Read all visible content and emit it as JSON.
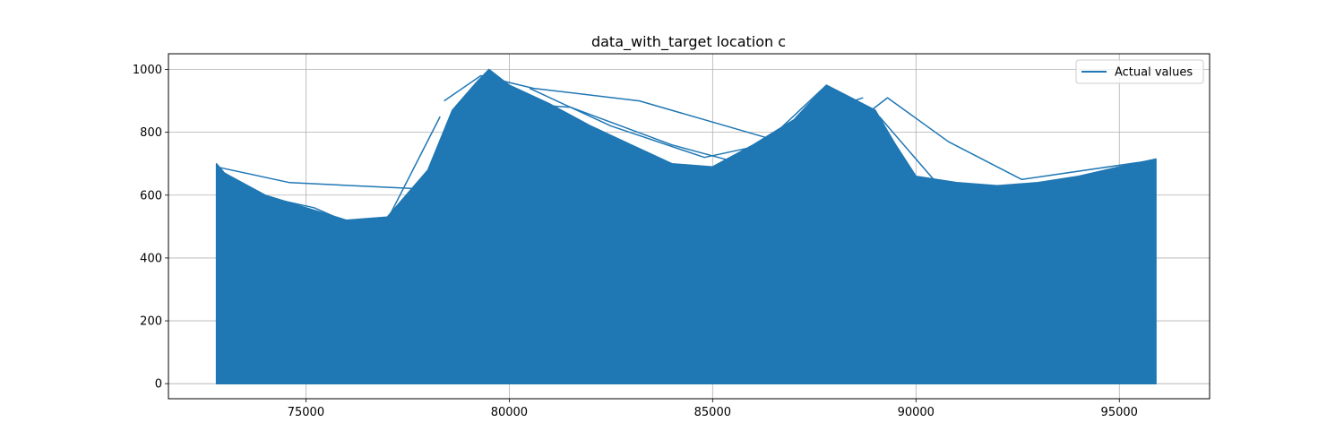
{
  "chart_data": {
    "type": "line",
    "title": "data_with_target location c",
    "xlabel": "",
    "ylabel": "",
    "xlim": [
      71620,
      97220
    ],
    "ylim": [
      -48,
      1050
    ],
    "x_ticks": [
      75000,
      80000,
      85000,
      90000,
      95000
    ],
    "y_ticks": [
      0,
      200,
      400,
      600,
      800,
      1000
    ],
    "grid": true,
    "legend_position": "top-right",
    "series": [
      {
        "name": "Actual values",
        "color": "#1f77b4",
        "envelope": {
          "x": [
            72800,
            73000,
            74000,
            75000,
            76000,
            77000,
            78000,
            78600,
            79200,
            79500,
            80000,
            81000,
            82000,
            83000,
            84000,
            85000,
            86000,
            87000,
            87800,
            88400,
            89000,
            89500,
            90000,
            91000,
            92000,
            93000,
            94000,
            95000,
            95900
          ],
          "y": [
            700,
            670,
            600,
            560,
            520,
            530,
            680,
            870,
            960,
            1000,
            950,
            890,
            820,
            760,
            700,
            690,
            760,
            840,
            950,
            910,
            870,
            760,
            660,
            640,
            630,
            640,
            660,
            690,
            715
          ]
        },
        "overlay_segments": [
          {
            "x": [
              72800,
              74600,
              77800,
              78800
            ],
            "y": [
              690,
              640,
              620,
              900
            ]
          },
          {
            "x": [
              78400,
              79300,
              80600,
              83200,
              86400,
              87800
            ],
            "y": [
              900,
              980,
              940,
              900,
              780,
              950
            ]
          },
          {
            "x": [
              80500,
              82500,
              84800,
              86600,
              88000,
              88700
            ],
            "y": [
              940,
              820,
              720,
              770,
              880,
              910
            ]
          },
          {
            "x": [
              88000,
              88900,
              89300,
              90800,
              92600,
              95800
            ],
            "y": [
              910,
              870,
              910,
              770,
              650,
              710
            ]
          },
          {
            "x": [
              73100,
              75200,
              76800,
              78300
            ],
            "y": [
              620,
              560,
              470,
              850
            ]
          },
          {
            "x": [
              79000,
              81500,
              84000,
              86000,
              88300
            ],
            "y": [
              900,
              880,
              760,
              690,
              880
            ]
          },
          {
            "x": [
              89100,
              90500,
              92800,
              95600
            ],
            "y": [
              850,
              640,
              600,
              680
            ]
          }
        ]
      }
    ]
  }
}
